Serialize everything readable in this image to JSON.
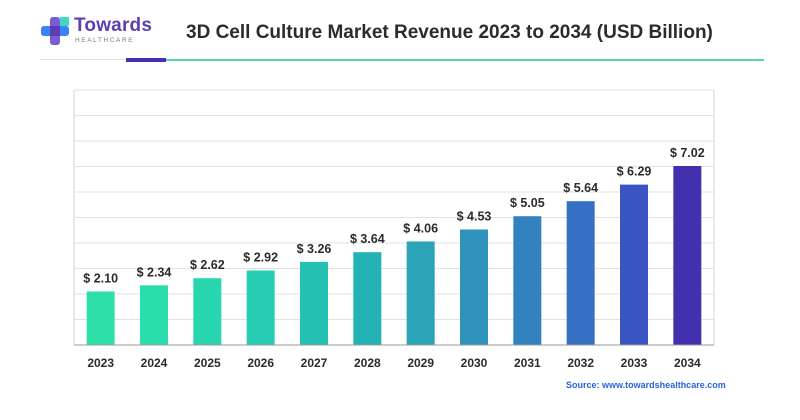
{
  "brand": {
    "name": "Towards",
    "subtitle": "HEALTHCARE",
    "colors": {
      "purple": "#5b3fb0",
      "blue": "#3b82f6",
      "teal": "#2dd4bf"
    }
  },
  "source_text": "Source: www.towardshealthcare.com",
  "chart_data": {
    "type": "bar",
    "title": "3D Cell Culture Market Revenue 2023 to 2034 (USD Billion)",
    "xlabel": "",
    "ylabel": "",
    "categories": [
      "2023",
      "2024",
      "2025",
      "2026",
      "2027",
      "2028",
      "2029",
      "2030",
      "2031",
      "2032",
      "2033",
      "2034"
    ],
    "values": [
      2.1,
      2.34,
      2.62,
      2.92,
      3.26,
      3.64,
      4.06,
      4.53,
      5.05,
      5.64,
      6.29,
      7.02
    ],
    "value_labels": [
      "$ 2.10",
      "$ 2.34",
      "$ 2.62",
      "$ 2.92",
      "$ 3.26",
      "$ 3.64",
      "$ 4.06",
      "$ 4.53",
      "$ 5.05",
      "$ 5.64",
      "$ 6.29",
      "$ 7.02"
    ],
    "ylim": [
      0,
      10
    ],
    "grid": true,
    "legend": "none",
    "bar_colors": [
      "#2ee0a8",
      "#2bdcac",
      "#29d6b0",
      "#27cdb3",
      "#25c2b4",
      "#24b3b5",
      "#2aa4b6",
      "#2f93bb",
      "#3282c0",
      "#3670c4",
      "#3a55c2",
      "#4230ae"
    ]
  }
}
